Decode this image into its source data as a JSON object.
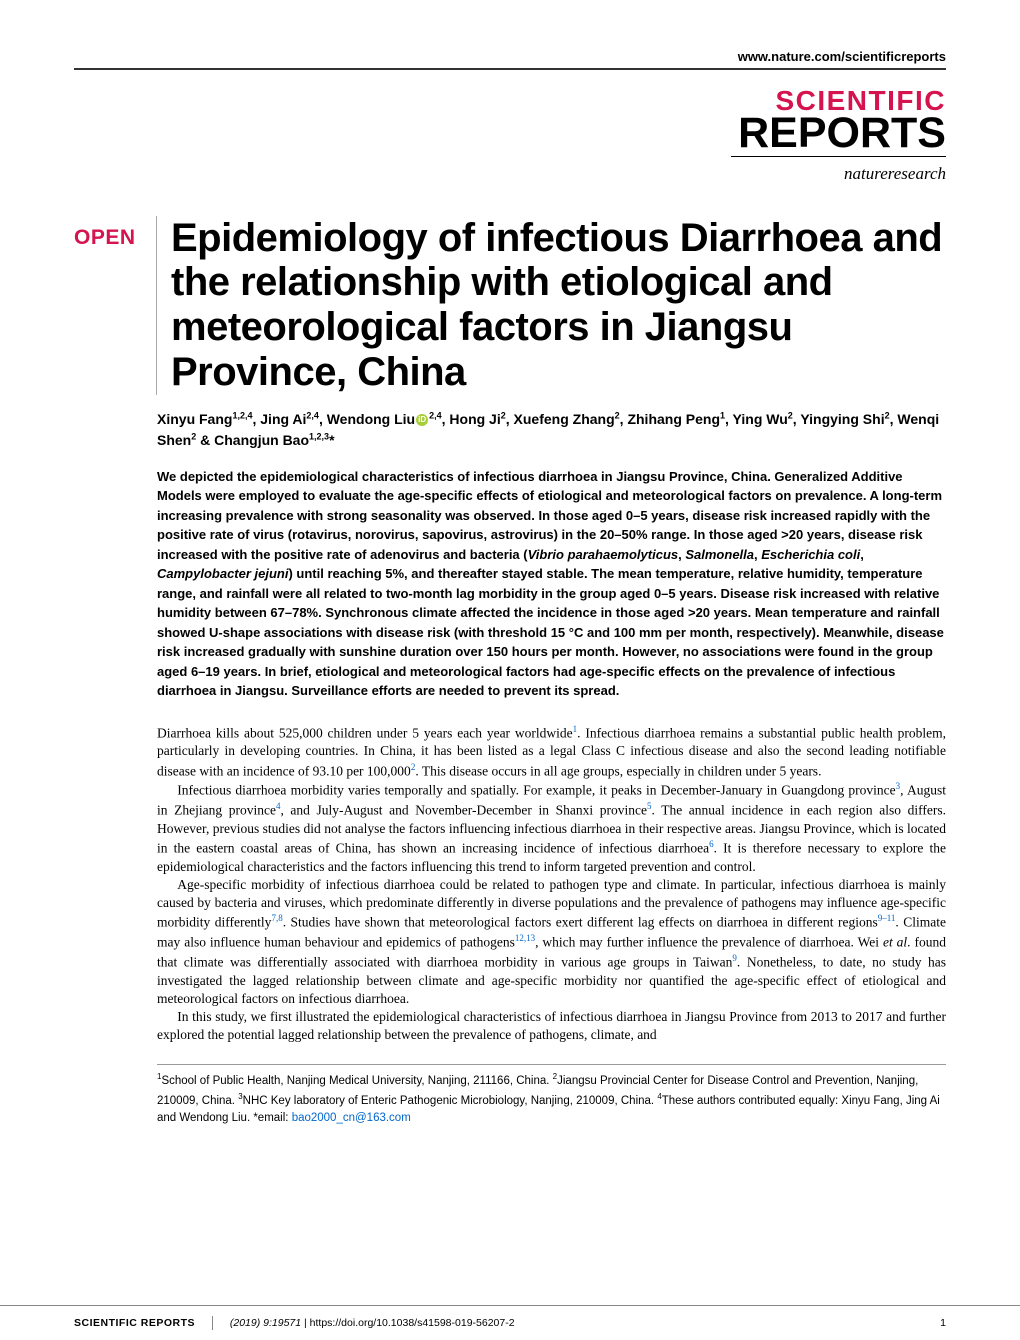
{
  "colors": {
    "accent": "#d4134f",
    "link": "#0066cc",
    "orcid": "#a6ce39",
    "text": "#000000",
    "background": "#ffffff",
    "rule": "#888888"
  },
  "header": {
    "url": "www.nature.com/scientificreports"
  },
  "logo": {
    "line1": "SCIENTIFIC",
    "line2": "REPORTS",
    "sub": "natureresearch"
  },
  "badge": "OPEN",
  "title": "Epidemiology of infectious Diarrhoea and the relationship with etiological and meteorological factors in Jiangsu Province, China",
  "authors_html": "Xinyu Fang<sup>1,2,4</sup>, Jing Ai<sup>2,4</sup>, Wendong Liu<span class=\"orcid\">iD</span><sup>2,4</sup>, Hong Ji<sup>2</sup>, Xuefeng Zhang<sup>2</sup>, Zhihang Peng<sup>1</sup>, Ying Wu<sup>2</sup>, Yingying Shi<sup>2</sup>, Wenqi Shen<sup>2</sup> & Changjun Bao<sup>1,2,3</sup>*",
  "abstract_html": "We depicted the epidemiological characteristics of infectious diarrhoea in Jiangsu Province, China. Generalized Additive Models were employed to evaluate the age-specific effects of etiological and meteorological factors on prevalence. A long-term increasing prevalence with strong seasonality was observed. In those aged 0–5 years, disease risk increased rapidly with the positive rate of virus (rotavirus, norovirus, sapovirus, astrovirus) in the 20–50% range. In those aged &gt;20 years, disease risk increased with the positive rate of adenovirus and bacteria (<span class=\"ital\">Vibrio parahaemolyticus</span>, <span class=\"ital\">Salmonella</span>, <span class=\"ital\">Escherichia coli</span>, <span class=\"ital\">Campylobacter jejuni</span>) until reaching 5%, and thereafter stayed stable. The mean temperature, relative humidity, temperature range, and rainfall were all related to two-month lag morbidity in the group aged 0–5 years. Disease risk increased with relative humidity between 67–78%. Synchronous climate affected the incidence in those aged &gt;20 years. Mean temperature and rainfall showed U-shape associations with disease risk (with threshold 15 °C and 100 mm per month, respectively). Meanwhile, disease risk increased gradually with sunshine duration over 150 hours per month. However, no associations were found in the group aged 6–19 years. In brief, etiological and meteorological factors had age-specific effects on the prevalence of infectious diarrhoea in Jiangsu. Surveillance efforts are needed to prevent its spread.",
  "body": {
    "p1": "Diarrhoea kills about 525,000 children under 5 years each year worldwide<span class=\"ref\">1</span>. Infectious diarrhoea remains a substantial public health problem, particularly in developing countries. In China, it has been listed as a legal Class C infectious disease and also the second leading notifiable disease with an incidence of 93.10 per 100,000<span class=\"ref\">2</span>. This disease occurs in all age groups, especially in children under 5 years.",
    "p2": "Infectious diarrhoea morbidity varies temporally and spatially. For example, it peaks in December-January in Guangdong province<span class=\"ref\">3</span>, August in Zhejiang province<span class=\"ref\">4</span>, and July-August and November-December in Shanxi province<span class=\"ref\">5</span>. The annual incidence in each region also differs. However, previous studies did not analyse the factors influencing infectious diarrhoea in their respective areas. Jiangsu Province, which is located in the eastern coastal areas of China, has shown an increasing incidence of infectious diarrhoea<span class=\"ref\">6</span>. It is therefore necessary to explore the epidemiological characteristics and the factors influencing this trend to inform targeted prevention and control.",
    "p3": "Age-specific morbidity of infectious diarrhoea could be related to pathogen type and climate. In particular, infectious diarrhoea is mainly caused by bacteria and viruses, which predominate differently in diverse populations and the prevalence of pathogens may influence age-specific morbidity differently<span class=\"ref\">7,8</span>. Studies have shown that meteorological factors exert different lag effects on diarrhoea in different regions<span class=\"ref\">9–11</span>. Climate may also influence human behaviour and epidemics of pathogens<span class=\"ref\">12,13</span>, which may further influence the prevalence of diarrhoea. Wei <span class=\"ital\">et al</span>. found that climate was differentially associated with diarrhoea morbidity in various age groups in Taiwan<span class=\"ref\">9</span>. Nonetheless, to date, no study has investigated the lagged relationship between climate and age-specific morbidity nor quantified the age-specific effect of etiological and meteorological factors on infectious diarrhoea.",
    "p4": "In this study, we first illustrated the epidemiological characteristics of infectious diarrhoea in Jiangsu Province from 2013 to 2017 and further explored the potential lagged relationship between the prevalence of pathogens, climate, and"
  },
  "affiliations_html": "<sup>1</sup>School of Public Health, Nanjing Medical University, Nanjing, 211166, China. <sup>2</sup>Jiangsu Provincial Center for Disease Control and Prevention, Nanjing, 210009, China. <sup>3</sup>NHC Key laboratory of Enteric Pathogenic Microbiology, Nanjing, 210009, China. <sup>4</sup>These authors contributed equally: Xinyu Fang, Jing Ai and Wendong Liu. *email: <span class=\"email\">bao2000_cn@163.com</span>",
  "footer": {
    "journal": "SCIENTIFIC REPORTS",
    "citation": "(2019) 9:19571 ",
    "doi": "| https://doi.org/10.1038/s41598-019-56207-2",
    "page": "1"
  }
}
